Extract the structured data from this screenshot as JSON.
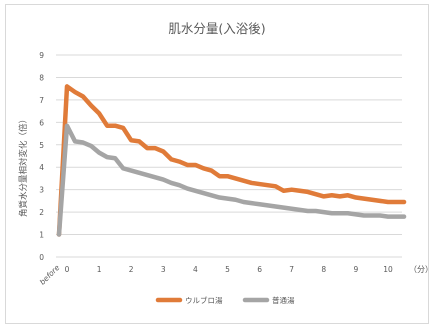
{
  "chart_data": {
    "type": "line",
    "title": "肌水分量(入浴後)",
    "ylabel": "角質水分量相対変化（倍）",
    "x_unit_label": "（分）",
    "ylim": [
      0,
      9
    ],
    "y_ticks": [
      "0",
      "1",
      "2",
      "3",
      "4",
      "5",
      "6",
      "7",
      "8",
      "9"
    ],
    "x_ticks": [
      "before",
      "0",
      "1",
      "2",
      "3",
      "4",
      "5",
      "6",
      "7",
      "8",
      "9",
      "10"
    ],
    "x": [
      "before",
      0,
      0.25,
      0.5,
      0.75,
      1,
      1.25,
      1.5,
      1.75,
      2,
      2.25,
      2.5,
      2.75,
      3,
      3.25,
      3.5,
      3.75,
      4,
      4.25,
      4.5,
      4.75,
      5,
      5.25,
      5.5,
      5.75,
      6,
      6.25,
      6.5,
      6.75,
      7,
      7.25,
      7.5,
      7.75,
      8,
      8.25,
      8.5,
      8.75,
      9,
      9.25,
      9.5,
      9.75,
      10,
      10.25,
      10.5
    ],
    "grid": "horizontal",
    "legend_position": "bottom",
    "series": [
      {
        "name": "ウルブロ湯",
        "color": "#e07b39",
        "values": [
          1.0,
          7.6,
          7.35,
          7.15,
          6.75,
          6.4,
          5.85,
          5.85,
          5.75,
          5.2,
          5.15,
          4.85,
          4.85,
          4.7,
          4.35,
          4.25,
          4.1,
          4.1,
          3.95,
          3.85,
          3.6,
          3.6,
          3.5,
          3.4,
          3.3,
          3.25,
          3.2,
          3.15,
          2.95,
          3.0,
          2.95,
          2.9,
          2.8,
          2.7,
          2.75,
          2.7,
          2.75,
          2.65,
          2.6,
          2.55,
          2.5,
          2.45,
          2.45,
          2.45
        ]
      },
      {
        "name": "普通湯",
        "color": "#a5a5a5",
        "values": [
          1.0,
          5.85,
          5.15,
          5.1,
          4.95,
          4.65,
          4.45,
          4.4,
          3.95,
          3.85,
          3.75,
          3.65,
          3.55,
          3.45,
          3.3,
          3.2,
          3.05,
          2.95,
          2.85,
          2.75,
          2.65,
          2.6,
          2.55,
          2.45,
          2.4,
          2.35,
          2.3,
          2.25,
          2.2,
          2.15,
          2.1,
          2.05,
          2.05,
          2.0,
          1.95,
          1.95,
          1.95,
          1.9,
          1.85,
          1.85,
          1.85,
          1.8,
          1.8,
          1.8
        ]
      }
    ]
  }
}
